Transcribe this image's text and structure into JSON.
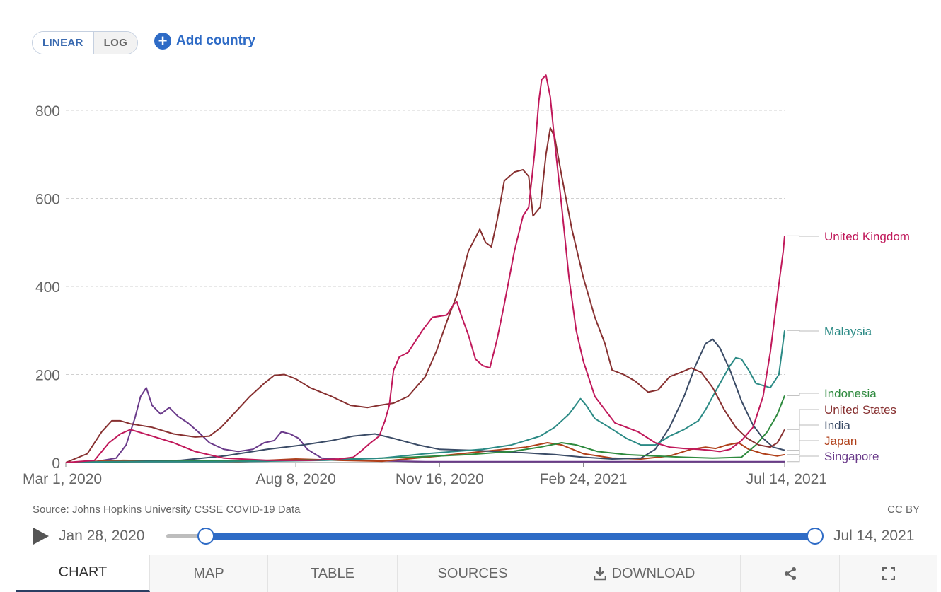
{
  "controls": {
    "linear_label": "LINEAR",
    "log_label": "LOG",
    "add_country_label": "Add country"
  },
  "chart_data": {
    "type": "line",
    "ylim": [
      0,
      800
    ],
    "y_ticks": [
      "0",
      "200",
      "400",
      "600",
      "800"
    ],
    "y_tick_values": [
      0,
      200,
      400,
      600,
      800
    ],
    "x_ticks": [
      "Mar 1, 2020",
      "Aug 8, 2020",
      "Nov 16, 2020",
      "Feb 24, 2021",
      "Jul 14, 2021"
    ],
    "x_tick_days": [
      0,
      160,
      260,
      360,
      500
    ],
    "x_range_days": [
      0,
      500
    ],
    "series": [
      {
        "name": "United Kingdom",
        "color": "#c0185a",
        "points": [
          [
            0,
            0
          ],
          [
            20,
            5
          ],
          [
            30,
            45
          ],
          [
            38,
            65
          ],
          [
            45,
            75
          ],
          [
            60,
            60
          ],
          [
            75,
            45
          ],
          [
            90,
            25
          ],
          [
            110,
            10
          ],
          [
            140,
            5
          ],
          [
            170,
            5
          ],
          [
            190,
            8
          ],
          [
            200,
            12
          ],
          [
            205,
            25
          ],
          [
            212,
            45
          ],
          [
            218,
            60
          ],
          [
            222,
            95
          ],
          [
            225,
            130
          ],
          [
            228,
            210
          ],
          [
            232,
            240
          ],
          [
            238,
            250
          ],
          [
            248,
            300
          ],
          [
            255,
            330
          ],
          [
            265,
            335
          ],
          [
            270,
            360
          ],
          [
            272,
            365
          ],
          [
            275,
            335
          ],
          [
            280,
            290
          ],
          [
            285,
            235
          ],
          [
            290,
            220
          ],
          [
            295,
            215
          ],
          [
            300,
            280
          ],
          [
            305,
            360
          ],
          [
            312,
            480
          ],
          [
            318,
            560
          ],
          [
            322,
            580
          ],
          [
            326,
            700
          ],
          [
            329,
            820
          ],
          [
            331,
            870
          ],
          [
            334,
            880
          ],
          [
            337,
            830
          ],
          [
            340,
            730
          ],
          [
            345,
            580
          ],
          [
            350,
            420
          ],
          [
            355,
            300
          ],
          [
            360,
            230
          ],
          [
            368,
            150
          ],
          [
            375,
            120
          ],
          [
            382,
            90
          ],
          [
            390,
            80
          ],
          [
            398,
            70
          ],
          [
            410,
            45
          ],
          [
            420,
            35
          ],
          [
            430,
            32
          ],
          [
            440,
            30
          ],
          [
            448,
            28
          ],
          [
            455,
            25
          ],
          [
            462,
            30
          ],
          [
            470,
            50
          ],
          [
            478,
            80
          ],
          [
            485,
            150
          ],
          [
            490,
            250
          ],
          [
            495,
            380
          ],
          [
            499,
            480
          ],
          [
            500,
            515
          ]
        ]
      },
      {
        "name": "Malaysia",
        "color": "#2b8a85",
        "points": [
          [
            0,
            0
          ],
          [
            30,
            2
          ],
          [
            60,
            2
          ],
          [
            100,
            2
          ],
          [
            140,
            3
          ],
          [
            180,
            5
          ],
          [
            220,
            10
          ],
          [
            250,
            20
          ],
          [
            270,
            25
          ],
          [
            290,
            30
          ],
          [
            310,
            40
          ],
          [
            330,
            60
          ],
          [
            340,
            80
          ],
          [
            350,
            110
          ],
          [
            358,
            145
          ],
          [
            362,
            130
          ],
          [
            368,
            100
          ],
          [
            378,
            80
          ],
          [
            390,
            55
          ],
          [
            400,
            40
          ],
          [
            410,
            40
          ],
          [
            420,
            60
          ],
          [
            430,
            75
          ],
          [
            440,
            95
          ],
          [
            445,
            120
          ],
          [
            450,
            150
          ],
          [
            455,
            180
          ],
          [
            462,
            220
          ],
          [
            466,
            238
          ],
          [
            470,
            235
          ],
          [
            475,
            210
          ],
          [
            480,
            180
          ],
          [
            490,
            170
          ],
          [
            496,
            200
          ],
          [
            500,
            300
          ]
        ]
      },
      {
        "name": "Indonesia",
        "color": "#2e8a3e",
        "points": [
          [
            0,
            0
          ],
          [
            40,
            2
          ],
          [
            80,
            3
          ],
          [
            120,
            4
          ],
          [
            160,
            5
          ],
          [
            200,
            8
          ],
          [
            240,
            12
          ],
          [
            280,
            18
          ],
          [
            310,
            25
          ],
          [
            330,
            35
          ],
          [
            345,
            45
          ],
          [
            355,
            40
          ],
          [
            370,
            25
          ],
          [
            390,
            18
          ],
          [
            410,
            15
          ],
          [
            430,
            12
          ],
          [
            450,
            10
          ],
          [
            470,
            12
          ],
          [
            480,
            40
          ],
          [
            488,
            70
          ],
          [
            495,
            110
          ],
          [
            500,
            152
          ]
        ]
      },
      {
        "name": "United States",
        "color": "#873030",
        "points": [
          [
            0,
            0
          ],
          [
            15,
            20
          ],
          [
            25,
            70
          ],
          [
            32,
            95
          ],
          [
            38,
            95
          ],
          [
            45,
            88
          ],
          [
            60,
            80
          ],
          [
            75,
            65
          ],
          [
            90,
            58
          ],
          [
            100,
            60
          ],
          [
            108,
            80
          ],
          [
            118,
            115
          ],
          [
            128,
            150
          ],
          [
            138,
            180
          ],
          [
            145,
            198
          ],
          [
            152,
            200
          ],
          [
            160,
            190
          ],
          [
            170,
            170
          ],
          [
            185,
            150
          ],
          [
            198,
            130
          ],
          [
            210,
            125
          ],
          [
            218,
            130
          ],
          [
            228,
            135
          ],
          [
            238,
            150
          ],
          [
            250,
            195
          ],
          [
            258,
            255
          ],
          [
            265,
            320
          ],
          [
            272,
            380
          ],
          [
            280,
            480
          ],
          [
            288,
            530
          ],
          [
            292,
            500
          ],
          [
            296,
            490
          ],
          [
            300,
            550
          ],
          [
            305,
            640
          ],
          [
            312,
            660
          ],
          [
            318,
            665
          ],
          [
            322,
            650
          ],
          [
            325,
            560
          ],
          [
            330,
            580
          ],
          [
            334,
            700
          ],
          [
            337,
            760
          ],
          [
            340,
            740
          ],
          [
            345,
            650
          ],
          [
            352,
            530
          ],
          [
            360,
            420
          ],
          [
            368,
            330
          ],
          [
            375,
            270
          ],
          [
            380,
            210
          ],
          [
            388,
            200
          ],
          [
            396,
            185
          ],
          [
            405,
            160
          ],
          [
            412,
            165
          ],
          [
            420,
            195
          ],
          [
            428,
            205
          ],
          [
            435,
            215
          ],
          [
            442,
            205
          ],
          [
            450,
            170
          ],
          [
            458,
            120
          ],
          [
            466,
            80
          ],
          [
            474,
            55
          ],
          [
            482,
            40
          ],
          [
            490,
            35
          ],
          [
            495,
            45
          ],
          [
            500,
            75
          ]
        ]
      },
      {
        "name": "India",
        "color": "#3a4b66",
        "points": [
          [
            0,
            0
          ],
          [
            40,
            2
          ],
          [
            80,
            5
          ],
          [
            110,
            15
          ],
          [
            140,
            30
          ],
          [
            165,
            40
          ],
          [
            185,
            50
          ],
          [
            200,
            60
          ],
          [
            215,
            65
          ],
          [
            228,
            55
          ],
          [
            245,
            40
          ],
          [
            260,
            30
          ],
          [
            280,
            28
          ],
          [
            300,
            25
          ],
          [
            320,
            22
          ],
          [
            340,
            18
          ],
          [
            360,
            12
          ],
          [
            380,
            8
          ],
          [
            400,
            10
          ],
          [
            410,
            30
          ],
          [
            420,
            80
          ],
          [
            430,
            150
          ],
          [
            438,
            220
          ],
          [
            445,
            270
          ],
          [
            450,
            280
          ],
          [
            455,
            260
          ],
          [
            462,
            210
          ],
          [
            470,
            140
          ],
          [
            478,
            85
          ],
          [
            485,
            55
          ],
          [
            492,
            35
          ],
          [
            500,
            28
          ]
        ]
      },
      {
        "name": "Japan",
        "color": "#b0401a",
        "points": [
          [
            0,
            0
          ],
          [
            40,
            5
          ],
          [
            80,
            3
          ],
          [
            120,
            2
          ],
          [
            140,
            5
          ],
          [
            160,
            8
          ],
          [
            190,
            5
          ],
          [
            220,
            3
          ],
          [
            260,
            15
          ],
          [
            290,
            25
          ],
          [
            320,
            35
          ],
          [
            335,
            45
          ],
          [
            345,
            40
          ],
          [
            360,
            20
          ],
          [
            380,
            10
          ],
          [
            400,
            8
          ],
          [
            420,
            15
          ],
          [
            435,
            30
          ],
          [
            445,
            35
          ],
          [
            452,
            32
          ],
          [
            460,
            40
          ],
          [
            468,
            45
          ],
          [
            475,
            30
          ],
          [
            485,
            20
          ],
          [
            495,
            15
          ],
          [
            500,
            18
          ]
        ]
      },
      {
        "name": "Singapore",
        "color": "#6a3a8a",
        "points": [
          [
            0,
            0
          ],
          [
            20,
            2
          ],
          [
            35,
            10
          ],
          [
            42,
            40
          ],
          [
            48,
            100
          ],
          [
            52,
            150
          ],
          [
            56,
            170
          ],
          [
            60,
            130
          ],
          [
            66,
            110
          ],
          [
            72,
            125
          ],
          [
            78,
            105
          ],
          [
            85,
            90
          ],
          [
            92,
            70
          ],
          [
            100,
            45
          ],
          [
            110,
            30
          ],
          [
            120,
            25
          ],
          [
            130,
            30
          ],
          [
            138,
            45
          ],
          [
            145,
            50
          ],
          [
            150,
            70
          ],
          [
            156,
            65
          ],
          [
            162,
            55
          ],
          [
            168,
            30
          ],
          [
            178,
            10
          ],
          [
            200,
            5
          ],
          [
            250,
            2
          ],
          [
            300,
            2
          ],
          [
            350,
            2
          ],
          [
            400,
            2
          ],
          [
            450,
            2
          ],
          [
            500,
            2
          ]
        ]
      }
    ],
    "legend_order": [
      "United Kingdom",
      "Malaysia",
      "Indonesia",
      "United States",
      "India",
      "Japan",
      "Singapore"
    ]
  },
  "footer": {
    "source": "Source: Johns Hopkins University CSSE COVID-19 Data",
    "license": "CC BY"
  },
  "timeline": {
    "start_label": "Jan 28, 2020",
    "end_label": "Jul 14, 2021"
  },
  "tabs": {
    "chart": "CHART",
    "map": "MAP",
    "table": "TABLE",
    "sources": "SOURCES",
    "download": "DOWNLOAD"
  }
}
